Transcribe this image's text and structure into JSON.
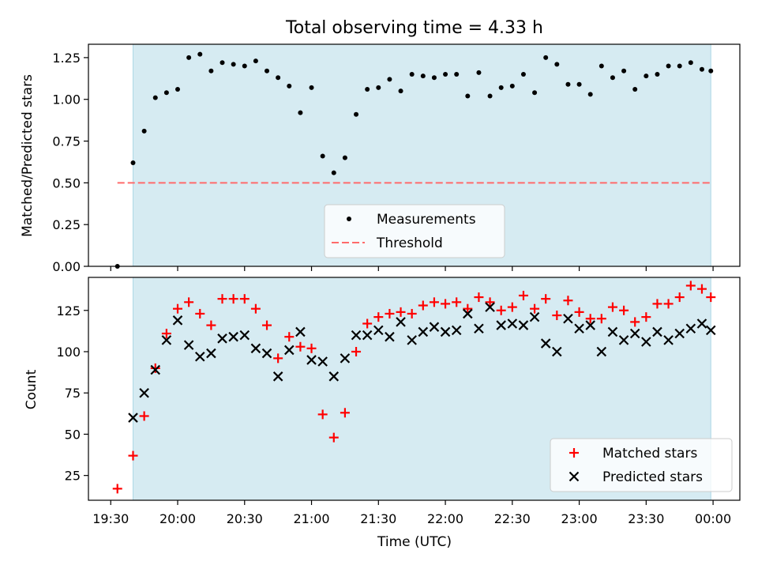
{
  "title": "Total observing time = 4.33 h",
  "colors": {
    "shade": "#add8e6",
    "measurement": "#000000",
    "threshold": "#ff6b6b",
    "matched": "#ff0000",
    "predicted": "#000000"
  },
  "chart_data": [
    {
      "type": "scatter",
      "panel": "top",
      "title": "Total observing time = 4.33 h",
      "xlabel": "",
      "ylabel": "Matched/Predicted stars",
      "xlim": [
        "19:20",
        "00:12"
      ],
      "ylim": [
        0,
        1.33
      ],
      "yticks": [
        "0.00",
        "0.25",
        "0.50",
        "0.75",
        "1.00",
        "1.25"
      ],
      "shaded_span": [
        "19:40",
        "23:59"
      ],
      "threshold": 0.5,
      "legend_position": "lower center",
      "legend": [
        "Measurements",
        "Threshold"
      ],
      "series": [
        {
          "name": "Measurements",
          "marker": "dot",
          "x": [
            "19:33",
            "19:40",
            "19:45",
            "19:50",
            "19:55",
            "20:00",
            "20:05",
            "20:10",
            "20:15",
            "20:20",
            "20:25",
            "20:30",
            "20:35",
            "20:40",
            "20:45",
            "20:50",
            "20:55",
            "21:00",
            "21:05",
            "21:10",
            "21:15",
            "21:20",
            "21:25",
            "21:30",
            "21:35",
            "21:40",
            "21:45",
            "21:50",
            "21:55",
            "22:00",
            "22:05",
            "22:10",
            "22:15",
            "22:20",
            "22:25",
            "22:30",
            "22:35",
            "22:40",
            "22:45",
            "22:50",
            "22:55",
            "23:00",
            "23:05",
            "23:10",
            "23:15",
            "23:20",
            "23:25",
            "23:30",
            "23:35",
            "23:40",
            "23:45",
            "23:50",
            "23:55",
            "23:59"
          ],
          "y": [
            0.0,
            0.62,
            0.81,
            1.01,
            1.04,
            1.06,
            1.25,
            1.27,
            1.17,
            1.22,
            1.21,
            1.2,
            1.23,
            1.17,
            1.13,
            1.08,
            0.92,
            1.07,
            0.66,
            0.56,
            0.65,
            0.91,
            1.06,
            1.07,
            1.12,
            1.05,
            1.15,
            1.14,
            1.13,
            1.15,
            1.15,
            1.02,
            1.16,
            1.02,
            1.07,
            1.08,
            1.15,
            1.04,
            1.25,
            1.21,
            1.09,
            1.09,
            1.03,
            1.2,
            1.13,
            1.17,
            1.06,
            1.14,
            1.15,
            1.2,
            1.2,
            1.22,
            1.18,
            1.17
          ]
        }
      ]
    },
    {
      "type": "scatter",
      "panel": "bottom",
      "xlabel": "Time (UTC)",
      "ylabel": "Count",
      "xlim": [
        "19:20",
        "00:12"
      ],
      "ylim": [
        10,
        145
      ],
      "yticks": [
        "25",
        "50",
        "75",
        "100",
        "125"
      ],
      "xticks": [
        "19:30",
        "20:00",
        "20:30",
        "21:00",
        "21:30",
        "22:00",
        "22:30",
        "23:00",
        "23:30",
        "00:00"
      ],
      "shaded_span": [
        "19:40",
        "23:59"
      ],
      "legend_position": "lower right",
      "legend": [
        "Matched stars",
        "Predicted stars"
      ],
      "series": [
        {
          "name": "Matched stars",
          "marker": "+",
          "x": [
            "19:33",
            "19:40",
            "19:45",
            "19:50",
            "19:55",
            "20:00",
            "20:05",
            "20:10",
            "20:15",
            "20:20",
            "20:25",
            "20:30",
            "20:35",
            "20:40",
            "20:45",
            "20:50",
            "20:55",
            "21:00",
            "21:05",
            "21:10",
            "21:15",
            "21:20",
            "21:25",
            "21:30",
            "21:35",
            "21:40",
            "21:45",
            "21:50",
            "21:55",
            "22:00",
            "22:05",
            "22:10",
            "22:15",
            "22:20",
            "22:25",
            "22:30",
            "22:35",
            "22:40",
            "22:45",
            "22:50",
            "22:55",
            "23:00",
            "23:05",
            "23:10",
            "23:15",
            "23:20",
            "23:25",
            "23:30",
            "23:35",
            "23:40",
            "23:45",
            "23:50",
            "23:55",
            "23:59"
          ],
          "y": [
            17,
            37,
            61,
            90,
            111,
            126,
            130,
            123,
            116,
            132,
            132,
            132,
            126,
            116,
            96,
            109,
            103,
            102,
            62,
            48,
            63,
            100,
            117,
            121,
            123,
            124,
            123,
            128,
            130,
            129,
            130,
            126,
            133,
            130,
            125,
            127,
            134,
            126,
            132,
            122,
            131,
            124,
            120,
            120,
            127,
            125,
            118,
            121,
            129,
            129,
            133,
            140,
            138,
            133
          ]
        },
        {
          "name": "Predicted stars",
          "marker": "x",
          "x": [
            "19:40",
            "19:45",
            "19:50",
            "19:55",
            "20:00",
            "20:05",
            "20:10",
            "20:15",
            "20:20",
            "20:25",
            "20:30",
            "20:35",
            "20:40",
            "20:45",
            "20:50",
            "20:55",
            "21:00",
            "21:05",
            "21:10",
            "21:15",
            "21:20",
            "21:25",
            "21:30",
            "21:35",
            "21:40",
            "21:45",
            "21:50",
            "21:55",
            "22:00",
            "22:05",
            "22:10",
            "22:15",
            "22:20",
            "22:25",
            "22:30",
            "22:35",
            "22:40",
            "22:45",
            "22:50",
            "22:55",
            "23:00",
            "23:05",
            "23:10",
            "23:15",
            "23:20",
            "23:25",
            "23:30",
            "23:35",
            "23:40",
            "23:45",
            "23:50",
            "23:55",
            "23:59"
          ],
          "y": [
            60,
            75,
            89,
            107,
            119,
            104,
            97,
            99,
            108,
            109,
            110,
            102,
            99,
            85,
            101,
            112,
            95,
            94,
            85,
            96,
            110,
            110,
            113,
            109,
            118,
            107,
            112,
            115,
            112,
            113,
            123,
            114,
            127,
            116,
            117,
            116,
            121,
            105,
            100,
            120,
            114,
            116,
            100,
            112,
            107,
            111,
            106,
            112,
            107,
            111,
            114,
            117,
            113
          ]
        }
      ]
    }
  ]
}
